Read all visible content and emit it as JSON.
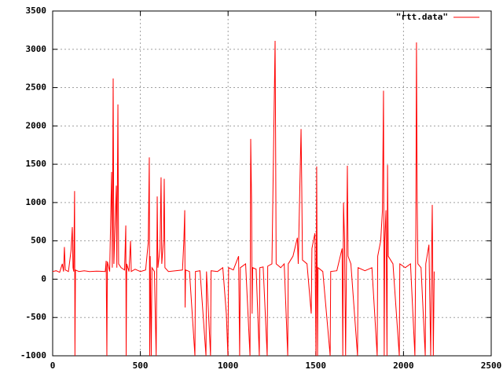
{
  "chart_data": {
    "type": "line",
    "x": [
      0,
      20,
      40,
      55,
      62,
      67,
      72,
      90,
      105,
      112,
      116,
      120,
      125,
      127,
      130,
      150,
      180,
      210,
      250,
      300,
      305,
      309,
      312,
      325,
      336,
      340,
      345,
      349,
      363,
      366,
      372,
      376,
      390,
      410,
      417,
      419,
      422,
      435,
      444,
      448,
      470,
      500,
      530,
      545,
      551,
      553,
      556,
      562,
      566,
      580,
      590,
      594,
      596,
      600,
      612,
      618,
      622,
      632,
      636,
      640,
      660,
      700,
      740,
      748,
      753,
      755,
      758,
      780,
      811,
      814,
      840,
      874,
      877,
      900,
      903,
      940,
      970,
      990,
      999,
      1003,
      1030,
      1060,
      1066,
      1070,
      1100,
      1125,
      1129,
      1134,
      1137,
      1140,
      1160,
      1178,
      1181,
      1200,
      1223,
      1226,
      1250,
      1268,
      1271,
      1274,
      1300,
      1320,
      1340,
      1343,
      1370,
      1395,
      1400,
      1416,
      1420,
      1424,
      1450,
      1474,
      1478,
      1495,
      1501,
      1505,
      1510,
      1513,
      1540,
      1582,
      1585,
      1620,
      1650,
      1654,
      1658,
      1664,
      1670,
      1680,
      1684,
      1700,
      1738,
      1741,
      1780,
      1820,
      1850,
      1853,
      1870,
      1880,
      1886,
      1890,
      1893,
      1900,
      1906,
      1909,
      1913,
      1940,
      1976,
      1979,
      2010,
      2040,
      2065,
      2070,
      2074,
      2078,
      2082,
      2100,
      2124,
      2127,
      2145,
      2155,
      2160,
      2164,
      2170,
      2175
    ],
    "series": [
      {
        "name": "\"rtt.data\"",
        "color": "#ff0000",
        "values": [
          100,
          110,
          90,
          200,
          100,
          420,
          120,
          100,
          380,
          680,
          150,
          100,
          1150,
          -1000,
          120,
          100,
          110,
          100,
          105,
          100,
          240,
          -1000,
          230,
          100,
          1400,
          150,
          2620,
          200,
          1220,
          150,
          2280,
          200,
          150,
          120,
          700,
          -1000,
          200,
          100,
          500,
          100,
          130,
          100,
          120,
          480,
          1590,
          -1000,
          300,
          -1000,
          150,
          100,
          -1000,
          200,
          1080,
          150,
          400,
          1330,
          200,
          500,
          1310,
          150,
          100,
          110,
          120,
          500,
          900,
          -370,
          120,
          100,
          -1000,
          100,
          110,
          -1000,
          100,
          -1000,
          110,
          100,
          150,
          -450,
          -1000,
          150,
          120,
          300,
          -1000,
          150,
          200,
          -1000,
          1830,
          1000,
          -450,
          150,
          130,
          -1000,
          150,
          160,
          -1000,
          170,
          200,
          3110,
          1780,
          200,
          150,
          200,
          -1000,
          200,
          300,
          540,
          200,
          1960,
          1200,
          250,
          200,
          -450,
          400,
          600,
          -1000,
          1470,
          -1000,
          150,
          100,
          -1000,
          100,
          110,
          400,
          -1000,
          1000,
          500,
          -1000,
          1480,
          300,
          200,
          -1000,
          150,
          110,
          150,
          -1000,
          300,
          500,
          900,
          2460,
          -1000,
          500,
          900,
          -1000,
          1490,
          300,
          200,
          -1000,
          200,
          150,
          200,
          -1000,
          500,
          3090,
          1030,
          200,
          150,
          -1000,
          200,
          450,
          -1000,
          300,
          970,
          -1000,
          100
        ]
      }
    ],
    "xlim": [
      0,
      2500
    ],
    "xticks": [
      0,
      500,
      1000,
      1500,
      2000,
      2500
    ],
    "ylim": [
      -1000,
      3500
    ],
    "yticks": [
      -1000,
      -500,
      0,
      500,
      1000,
      1500,
      2000,
      2500,
      3000,
      3500
    ],
    "grid": true,
    "legend": "top-right"
  }
}
